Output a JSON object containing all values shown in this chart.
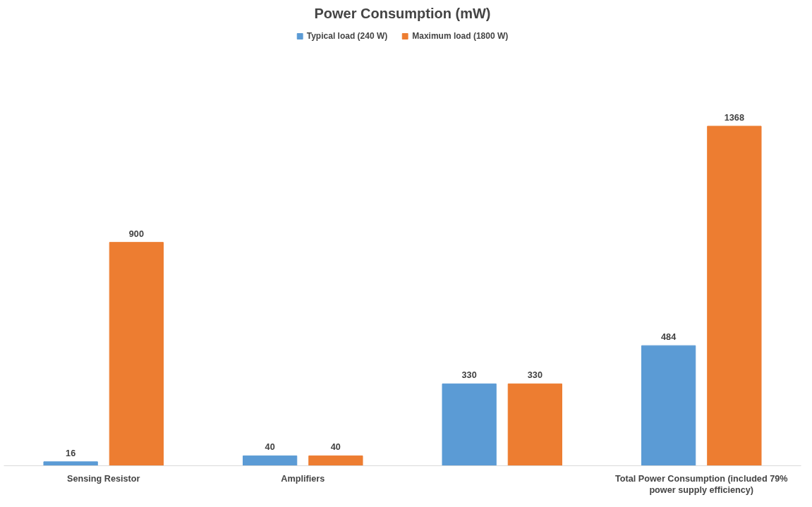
{
  "chart_data": {
    "type": "bar",
    "title": "Power Consumption (mW)",
    "categories": [
      "Sensing Resistor",
      "Amplifiers",
      null,
      "Total Power Consumption (included 79% power supply efficiency)"
    ],
    "series": [
      {
        "name": "Typical load (240 W)",
        "color": "#5b9bd5",
        "values": [
          16,
          40,
          330,
          484
        ]
      },
      {
        "name": "Maximum load (1800 W)",
        "color": "#ed7d31",
        "values": [
          900,
          40,
          330,
          1368
        ]
      }
    ],
    "data_labels": true,
    "legend": "top",
    "grid": false
  }
}
